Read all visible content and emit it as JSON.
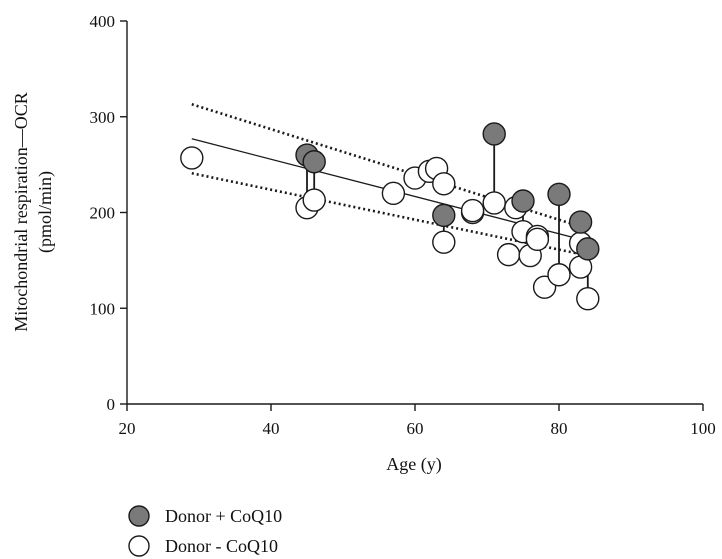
{
  "chart_data": {
    "type": "scatter",
    "title": "",
    "xlabel": "Age (y)",
    "ylabel_line1": "Mitochondrial respiration—OCR",
    "ylabel_line2": "(pmol/min)",
    "xlim": [
      20,
      100
    ],
    "ylim": [
      0,
      400
    ],
    "x_ticks": [
      20,
      40,
      60,
      80,
      100
    ],
    "y_ticks": [
      0,
      100,
      200,
      300,
      400
    ],
    "grid": false,
    "legend_position": "bottom-left",
    "colors": {
      "treated_fill": "#7a7a7a",
      "untreated_fill": "#ffffff",
      "stroke": "#1a1a1a"
    },
    "series": [
      {
        "name": "Donor + CoQ10",
        "marker": "filled-circle",
        "points": [
          {
            "x": 45,
            "y": 260
          },
          {
            "x": 46,
            "y": 253
          },
          {
            "x": 64,
            "y": 197
          },
          {
            "x": 71,
            "y": 282
          },
          {
            "x": 75,
            "y": 212
          },
          {
            "x": 80,
            "y": 219
          },
          {
            "x": 83,
            "y": 190
          },
          {
            "x": 84,
            "y": 162
          }
        ]
      },
      {
        "name": "Donor - CoQ10",
        "marker": "open-circle",
        "points": [
          {
            "x": 29,
            "y": 257
          },
          {
            "x": 45,
            "y": 205
          },
          {
            "x": 46,
            "y": 213
          },
          {
            "x": 57,
            "y": 220
          },
          {
            "x": 60,
            "y": 236
          },
          {
            "x": 62,
            "y": 243
          },
          {
            "x": 63,
            "y": 246
          },
          {
            "x": 64,
            "y": 230
          },
          {
            "x": 64,
            "y": 169
          },
          {
            "x": 68,
            "y": 200
          },
          {
            "x": 68,
            "y": 202
          },
          {
            "x": 71,
            "y": 210
          },
          {
            "x": 73,
            "y": 156
          },
          {
            "x": 74,
            "y": 205
          },
          {
            "x": 75,
            "y": 180
          },
          {
            "x": 76,
            "y": 155
          },
          {
            "x": 77,
            "y": 175
          },
          {
            "x": 77,
            "y": 172
          },
          {
            "x": 78,
            "y": 122
          },
          {
            "x": 80,
            "y": 135
          },
          {
            "x": 83,
            "y": 143
          },
          {
            "x": 83,
            "y": 168
          },
          {
            "x": 84,
            "y": 110
          }
        ]
      }
    ],
    "pairs": [
      {
        "x": 45,
        "y_treated": 260,
        "y_untreated": 205
      },
      {
        "x": 46,
        "y_treated": 253,
        "y_untreated": 213
      },
      {
        "x": 64,
        "y_treated": 197,
        "y_untreated": 169
      },
      {
        "x": 71,
        "y_treated": 282,
        "y_untreated": 210
      },
      {
        "x": 75,
        "y_treated": 212,
        "y_untreated": 180
      },
      {
        "x": 80,
        "y_treated": 219,
        "y_untreated": 135
      },
      {
        "x": 83,
        "y_treated": 190,
        "y_untreated": 168
      },
      {
        "x": 84,
        "y_treated": 162,
        "y_untreated": 110
      }
    ],
    "regression": {
      "line": [
        {
          "x": 29,
          "y": 277
        },
        {
          "x": 84,
          "y": 170
        }
      ],
      "ci_upper": [
        {
          "x": 29,
          "y": 313
        },
        {
          "x": 84,
          "y": 183
        }
      ],
      "ci_lower": [
        {
          "x": 29,
          "y": 241
        },
        {
          "x": 84,
          "y": 155
        }
      ]
    }
  }
}
